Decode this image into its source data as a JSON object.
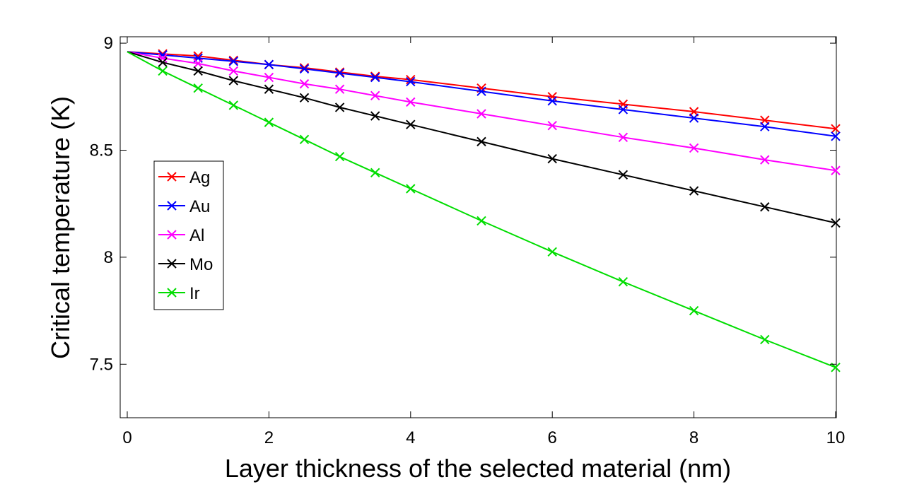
{
  "chart_data": {
    "type": "line",
    "title": "",
    "xlabel": "Layer thickness of the selected material (nm)",
    "ylabel": "Critical temperature (K)",
    "xlim": [
      0,
      10
    ],
    "ylim": [
      7.25,
      9.03
    ],
    "xticks": [
      0,
      2,
      4,
      6,
      8,
      10
    ],
    "yticks": [
      7.5,
      8,
      8.5,
      9
    ],
    "xtick_labels": [
      "0",
      "2",
      "4",
      "6",
      "8",
      "10"
    ],
    "ytick_labels": [
      "7.5",
      "8",
      "8.5",
      "9"
    ],
    "grid": false,
    "legend_position": "center-left",
    "marker": "x",
    "x": [
      0,
      0.5,
      1,
      1.5,
      2,
      2.5,
      3,
      3.5,
      4,
      5,
      6,
      7,
      8,
      9,
      10
    ],
    "series": [
      {
        "name": "Ag",
        "color": "#ff0000",
        "values": [
          8.96,
          8.95,
          8.94,
          8.92,
          8.9,
          8.885,
          8.865,
          8.845,
          8.83,
          8.79,
          8.75,
          8.715,
          8.68,
          8.64,
          8.6
        ]
      },
      {
        "name": "Au",
        "color": "#0000ff",
        "values": [
          8.96,
          8.945,
          8.93,
          8.915,
          8.9,
          8.88,
          8.86,
          8.84,
          8.82,
          8.775,
          8.73,
          8.69,
          8.65,
          8.61,
          8.565
        ]
      },
      {
        "name": "Al",
        "color": "#ff00ff",
        "values": [
          8.96,
          8.93,
          8.905,
          8.87,
          8.84,
          8.81,
          8.785,
          8.755,
          8.725,
          8.67,
          8.615,
          8.56,
          8.51,
          8.455,
          8.405
        ]
      },
      {
        "name": "Mo",
        "color": "#000000",
        "values": [
          8.96,
          8.91,
          8.87,
          8.825,
          8.785,
          8.745,
          8.7,
          8.66,
          8.62,
          8.54,
          8.46,
          8.385,
          8.31,
          8.235,
          8.16
        ]
      },
      {
        "name": "Ir",
        "color": "#00dd00",
        "values": [
          8.96,
          8.87,
          8.79,
          8.71,
          8.63,
          8.55,
          8.47,
          8.395,
          8.32,
          8.17,
          8.025,
          7.885,
          7.75,
          7.615,
          7.485
        ]
      }
    ]
  }
}
